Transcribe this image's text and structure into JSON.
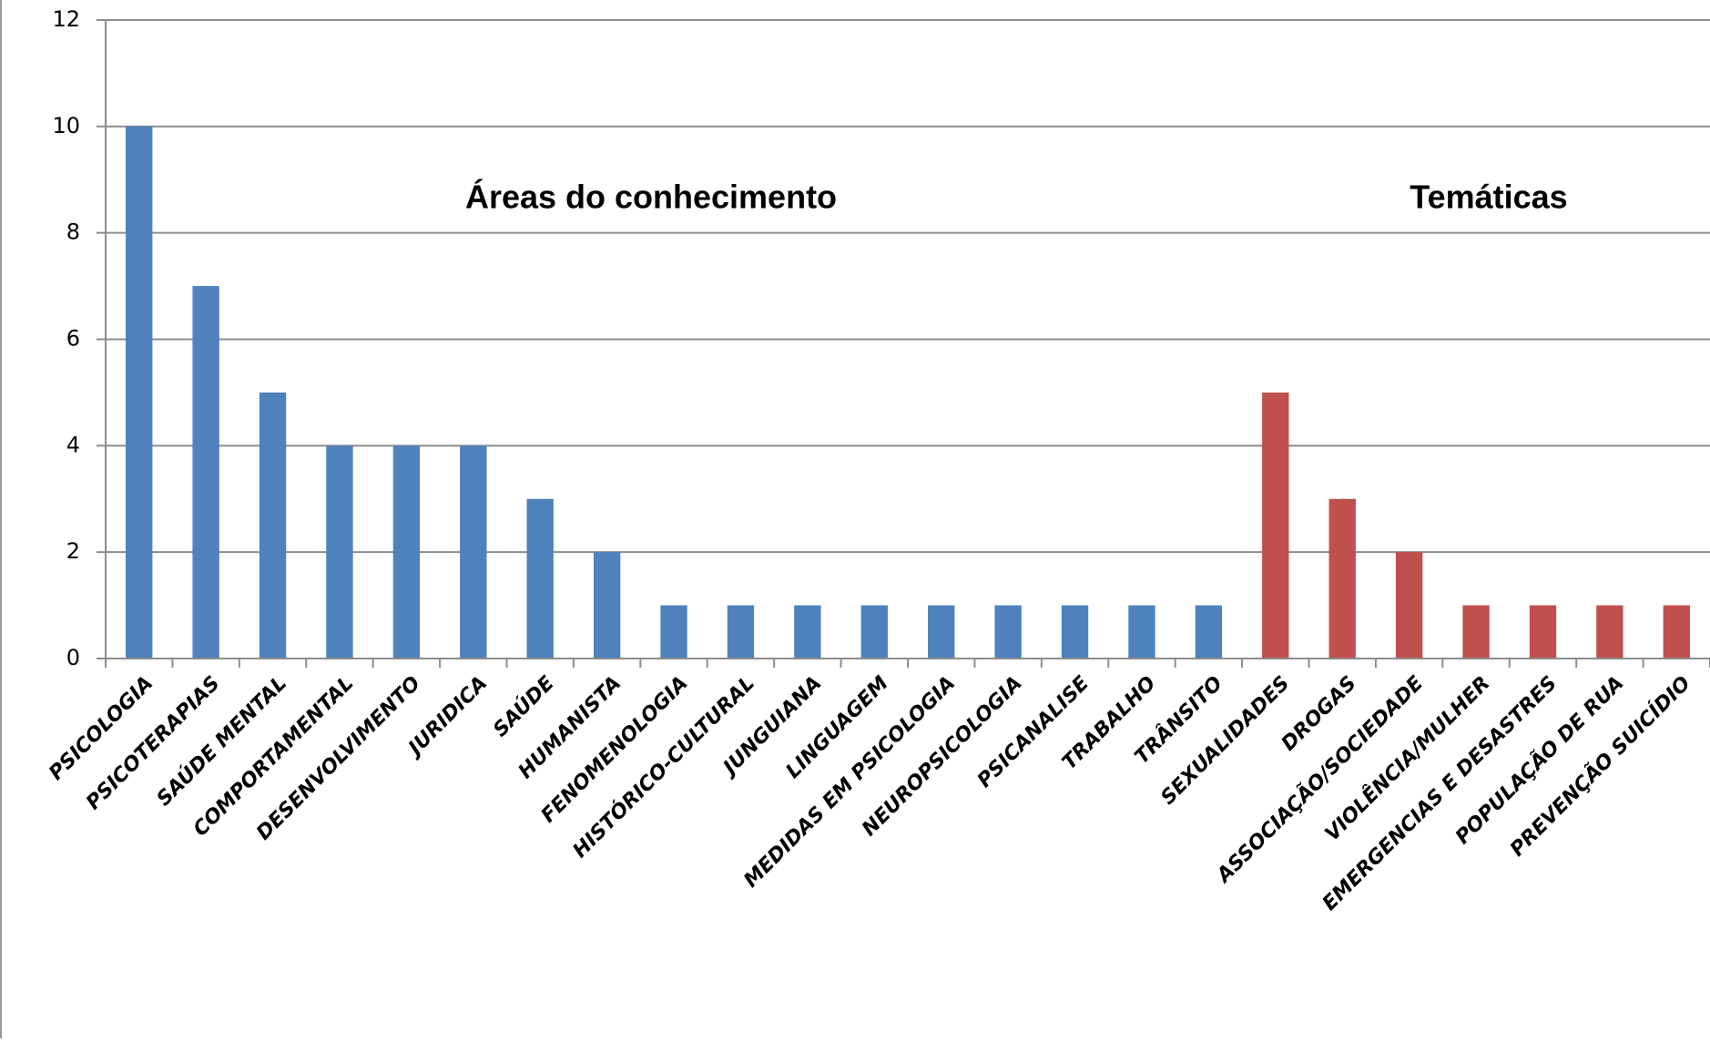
{
  "chart_data": {
    "type": "bar",
    "categories": [
      "PSICOLOGIA",
      "PSICOTERAPIAS",
      "SAÚDE MENTAL",
      "COMPORTAMENTAL",
      "DESENVOLVIMENTO",
      "JURIDICA",
      "SAÚDE",
      "HUMANISTA",
      "FENOMENOLOGIA",
      "HISTÓRICO-CULTURAL",
      "JUNGUIANA",
      "LINGUAGEM",
      "MEDIDAS EM PSICOLOGIA",
      "NEUROPSICOLOGIA",
      "PSICANALISE",
      "TRABALHO",
      "TRÂNSITO",
      "SEXUALIDADES",
      "DROGAS",
      "ASSOCIAÇÃO/SOCIEDADE",
      "VIOLÊNCIA/MULHER",
      "EMERGENCIAS E DESASTRES",
      "POPULAÇÃO DE RUA",
      "PREVENÇÃO SUICÍDIO"
    ],
    "values": [
      10,
      7,
      5,
      4,
      4,
      4,
      3,
      2,
      1,
      1,
      1,
      1,
      1,
      1,
      1,
      1,
      1,
      5,
      3,
      2,
      1,
      1,
      1,
      1
    ],
    "colors": [
      "#4f81bd",
      "#4f81bd",
      "#4f81bd",
      "#4f81bd",
      "#4f81bd",
      "#4f81bd",
      "#4f81bd",
      "#4f81bd",
      "#4f81bd",
      "#4f81bd",
      "#4f81bd",
      "#4f81bd",
      "#4f81bd",
      "#4f81bd",
      "#4f81bd",
      "#4f81bd",
      "#4f81bd",
      "#c0504d",
      "#c0504d",
      "#c0504d",
      "#c0504d",
      "#c0504d",
      "#c0504d",
      "#c0504d"
    ],
    "annotations": [
      "Áreas do conhecimento",
      "Temáticas"
    ],
    "ylim": [
      0,
      12
    ],
    "yticks": [
      0,
      2,
      4,
      6,
      8,
      10,
      12
    ],
    "grid": true
  }
}
